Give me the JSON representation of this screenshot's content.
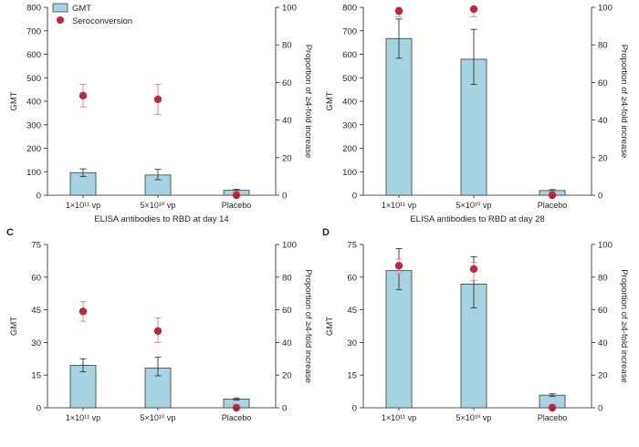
{
  "figure": {
    "legend": {
      "gmt_label": "GMT",
      "sero_label": "Seroconversion"
    },
    "colors": {
      "bar": "#a7d4e3",
      "bar_edge": "#3b3b3b",
      "sero": "#c0263f",
      "sero_err": "#d98a97",
      "axis": "#231f20"
    }
  },
  "chart_data": [
    {
      "panel": "A",
      "panel_label": "",
      "type": "bar",
      "categories": [
        "1×10¹¹ vp",
        "5×10¹⁰ vp",
        "Placebo"
      ],
      "gmt": [
        96,
        86,
        21
      ],
      "gmt_err": [
        [
          80,
          112
        ],
        [
          66,
          110
        ],
        [
          16,
          25
        ]
      ],
      "seroconversion": [
        53,
        51,
        0
      ],
      "sero_err": [
        [
          47,
          59
        ],
        [
          43,
          59
        ],
        [
          0,
          2
        ]
      ],
      "ylabel": "GMT",
      "y2label": "Proportion of ≥4-fold increase",
      "ylim": [
        0,
        800
      ],
      "yticks": [
        0,
        100,
        200,
        300,
        400,
        500,
        600,
        700,
        800
      ],
      "y2lim": [
        0,
        100
      ],
      "y2ticks": [
        0,
        20,
        40,
        60,
        80,
        100
      ],
      "xlabel": "ELISA antibodies to RBD at day 14",
      "legend": "top-left"
    },
    {
      "panel": "B",
      "panel_label": "",
      "type": "bar",
      "categories": [
        "1×10¹¹ vp",
        "5×10¹⁰ vp",
        "Placebo"
      ],
      "gmt": [
        667,
        579,
        20
      ],
      "gmt_err": [
        [
          583,
          750
        ],
        [
          472,
          706
        ],
        [
          16,
          24
        ]
      ],
      "seroconversion": [
        98,
        99,
        0
      ],
      "sero_err": [
        [
          95,
          100
        ],
        [
          95,
          100
        ],
        [
          0,
          2
        ]
      ],
      "ylabel": "GMT",
      "y2label": "Proportion of ≥4-fold increase",
      "ylim": [
        0,
        800
      ],
      "yticks": [
        0,
        100,
        200,
        300,
        400,
        500,
        600,
        700,
        800
      ],
      "y2lim": [
        0,
        100
      ],
      "y2ticks": [
        0,
        20,
        40,
        60,
        80,
        100
      ],
      "xlabel": "ELISA antibodies to RBD at day 28"
    },
    {
      "panel": "C",
      "panel_label": "C",
      "type": "bar",
      "categories": [
        "1×10¹¹ vp",
        "5×10¹⁰ vp",
        "Placebo"
      ],
      "gmt": [
        19.5,
        18.3,
        4.0
      ],
      "gmt_err": [
        [
          16.5,
          22.5
        ],
        [
          14.7,
          23.2
        ],
        [
          3.5,
          4.5
        ]
      ],
      "seroconversion": [
        59,
        47,
        0
      ],
      "sero_err": [
        [
          53,
          65
        ],
        [
          40,
          55
        ],
        [
          0,
          2
        ]
      ],
      "ylabel": "GMT",
      "y2label": "Proportion of ≥4-fold increase",
      "ylim": [
        0,
        75
      ],
      "yticks": [
        0,
        15,
        30,
        45,
        60,
        75
      ],
      "y2lim": [
        0,
        100
      ],
      "y2ticks": [
        0,
        20,
        40,
        60,
        80,
        100
      ],
      "xlabel": ""
    },
    {
      "panel": "D",
      "panel_label": "D",
      "type": "bar",
      "categories": [
        "1×10¹¹ vp",
        "5×10¹⁰ vp",
        "Placebo"
      ],
      "gmt": [
        63,
        56.8,
        5.8
      ],
      "gmt_err": [
        [
          54.3,
          73.1
        ],
        [
          45.9,
          69.4
        ],
        [
          5.2,
          6.4
        ]
      ],
      "seroconversion": [
        87,
        85,
        0
      ],
      "sero_err": [
        [
          82,
          91
        ],
        [
          78,
          89
        ],
        [
          0,
          2
        ]
      ],
      "ylabel": "GMT",
      "y2label": "Proportion of ≥4-fold increase",
      "ylim": [
        0,
        75
      ],
      "yticks": [
        0,
        15,
        30,
        45,
        60,
        75
      ],
      "y2lim": [
        0,
        100
      ],
      "y2ticks": [
        0,
        20,
        40,
        60,
        80,
        100
      ],
      "xlabel": ""
    }
  ]
}
